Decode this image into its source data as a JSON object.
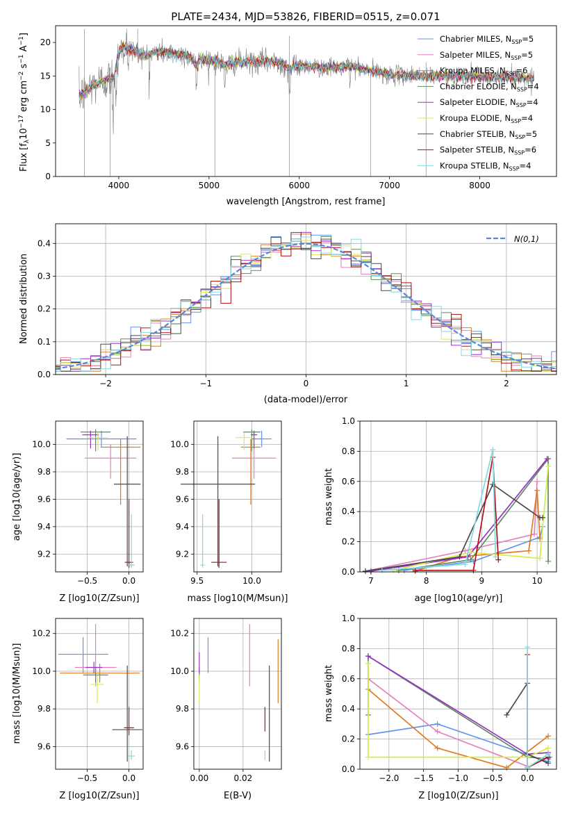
{
  "figure": {
    "title": "PLATE=2434, MJD=53826, FIBERID=0515, z=0.071"
  },
  "models": [
    {
      "name": "Chabrier MILES",
      "nssp": "5",
      "color": "#6495ed"
    },
    {
      "name": "Salpeter MILES",
      "nssp": "5",
      "color": "#e580bf"
    },
    {
      "name": "Kroupa MILES",
      "nssp": "6",
      "color": "#e07b20"
    },
    {
      "name": "Chabrier ELODIE",
      "nssp": "4",
      "color": "#5e8a5e"
    },
    {
      "name": "Salpeter ELODIE",
      "nssp": "4",
      "color": "#9b30c8"
    },
    {
      "name": "Kroupa ELODIE",
      "nssp": "4",
      "color": "#d4ec4e"
    },
    {
      "name": "Chabrier STELIB",
      "nssp": "5",
      "color": "#4a4a4a"
    },
    {
      "name": "Salpeter STELIB",
      "nssp": "6",
      "color": "#b01010"
    },
    {
      "name": "Kroupa STELIB",
      "nssp": "4",
      "color": "#7fdbe0"
    }
  ],
  "chart_data": [
    {
      "id": "spectrum",
      "type": "line",
      "xlabel": "wavelength [Angstrom, rest frame]",
      "ylabel": "Flux [f_λ 10^-17 erg cm^-2 s^-1 A^-1]",
      "ylabel_parts": {
        "a": "Flux [f",
        "b": "λ",
        "c": "10",
        "d": "−17",
        "e": " erg cm",
        "f": "−2",
        "g": " s",
        "h": "−1",
        "i": " A",
        "j": "−1",
        "k": "]"
      },
      "xlim": [
        3300,
        8850
      ],
      "ylim": [
        0,
        22.5
      ],
      "xticks": [
        4000,
        5000,
        6000,
        7000,
        8000
      ],
      "yticks": [
        0,
        5,
        10,
        15,
        20
      ],
      "data_color": "#7a7a7a",
      "anchors_x": [
        3560,
        3620,
        3700,
        3800,
        3900,
        3950,
        4000,
        4050,
        4100,
        4200,
        4300,
        4400,
        4500,
        4600,
        4700,
        4800,
        4862,
        4900,
        5000,
        5100,
        5175,
        5300,
        5400,
        5500,
        5600,
        5700,
        5800,
        5893,
        6000,
        6100,
        6200,
        6300,
        6400,
        6563,
        6700,
        6800,
        7000,
        7200,
        7400,
        7600,
        7800,
        8000,
        8200,
        8400,
        8600
      ],
      "anchors_y": [
        12.0,
        12.5,
        13.5,
        14.2,
        14.5,
        15.0,
        18.5,
        19.5,
        19.2,
        18.6,
        18.0,
        18.5,
        18.6,
        18.3,
        18.2,
        17.8,
        16.5,
        17.6,
        17.4,
        17.2,
        16.5,
        17.1,
        17.0,
        17.0,
        17.2,
        17.1,
        17.0,
        16.0,
        16.6,
        16.4,
        16.3,
        16.2,
        16.2,
        16.5,
        16.0,
        15.8,
        15.2,
        15.1,
        15.0,
        15.0,
        15.1,
        14.9,
        14.8,
        14.8,
        14.7
      ]
    },
    {
      "id": "residuals",
      "type": "histogram",
      "xlabel": "(data-model)/error",
      "ylabel": "Normed distribution",
      "xlim": [
        -2.5,
        2.5
      ],
      "ylim": [
        0,
        0.46
      ],
      "xticks": [
        -2,
        -1,
        0,
        1,
        2
      ],
      "yticks": [
        0,
        0.1,
        0.2,
        0.3,
        0.4
      ],
      "bin_width": 0.1,
      "gaussian": {
        "label": "N(0,1)",
        "mean": 0,
        "sigma": 1,
        "color": "#5a86d8"
      }
    },
    {
      "id": "age-vs-Z",
      "type": "errorbar",
      "xlabel": "Z [log10(Z/Zsun)]",
      "ylabel": "age [log10(age/yr)]",
      "xlim": [
        -0.88,
        0.17
      ],
      "ylim": [
        9.07,
        10.17
      ],
      "xticks": [
        -0.5,
        0.0
      ],
      "yticks": [
        9.2,
        9.4,
        9.6,
        9.8,
        10.0
      ],
      "points": [
        {
          "x": -0.33,
          "y": 10.04,
          "xerr": 0.42,
          "yerr_lo": 0.06,
          "yerr_hi": 0.06
        },
        {
          "x": -0.22,
          "y": 9.9,
          "xerr": 0.31,
          "yerr_lo": 0.15,
          "yerr_hi": 0.1
        },
        {
          "x": -0.1,
          "y": 9.98,
          "xerr": 0.24,
          "yerr_lo": 0.42,
          "yerr_hi": 0.06
        },
        {
          "x": -0.4,
          "y": 10.09,
          "xerr": 0.18,
          "yerr_lo": 0.14,
          "yerr_hi": 0.02
        },
        {
          "x": -0.46,
          "y": 10.07,
          "xerr": 0.1,
          "yerr_lo": 0.1,
          "yerr_hi": 0.03
        },
        {
          "x": -0.37,
          "y": 10.05,
          "xerr": 0.12,
          "yerr_lo": 0.09,
          "yerr_hi": 0.04
        },
        {
          "x": -0.02,
          "y": 9.71,
          "xerr": 0.16,
          "yerr_lo": 0.6,
          "yerr_hi": 0.35
        },
        {
          "x": 0.0,
          "y": 9.14,
          "xerr": 0.05,
          "yerr_lo": 0.04,
          "yerr_hi": 0.46
        },
        {
          "x": 0.03,
          "y": 9.12,
          "xerr": 0.04,
          "yerr_lo": 0.02,
          "yerr_hi": 0.37
        }
      ]
    },
    {
      "id": "age-vs-mass",
      "type": "errorbar",
      "xlabel": "mass [log10(M/Msun)]",
      "ylabel": "",
      "xlim": [
        9.47,
        10.27
      ],
      "ylim": [
        9.07,
        10.17
      ],
      "xticks": [
        9.5,
        10.0
      ],
      "yticks": [
        9.2,
        9.4,
        9.6,
        9.8,
        10.0
      ],
      "points": [
        {
          "x": 10.09,
          "y": 10.04,
          "xerr": 0.09,
          "yerr_lo": 0.06,
          "yerr_hi": 0.06
        },
        {
          "x": 10.02,
          "y": 9.9,
          "xerr": 0.2,
          "yerr_lo": 0.15,
          "yerr_hi": 0.1
        },
        {
          "x": 9.99,
          "y": 9.98,
          "xerr": 0.09,
          "yerr_lo": 0.42,
          "yerr_hi": 0.06
        },
        {
          "x": 10.0,
          "y": 10.09,
          "xerr": 0.08,
          "yerr_lo": 0.14,
          "yerr_hi": 0.02
        },
        {
          "x": 10.02,
          "y": 10.07,
          "xerr": 0.03,
          "yerr_lo": 0.1,
          "yerr_hi": 0.03
        },
        {
          "x": 9.93,
          "y": 10.05,
          "xerr": 0.08,
          "yerr_lo": 0.09,
          "yerr_hi": 0.04
        },
        {
          "x": 9.69,
          "y": 9.71,
          "xerr": 0.34,
          "yerr_lo": 0.6,
          "yerr_hi": 0.35
        },
        {
          "x": 9.7,
          "y": 9.14,
          "xerr": 0.07,
          "yerr_lo": 0.04,
          "yerr_hi": 0.46
        },
        {
          "x": 9.55,
          "y": 9.12,
          "xerr": 0.02,
          "yerr_lo": 0.02,
          "yerr_hi": 0.37
        }
      ]
    },
    {
      "id": "weight-vs-age",
      "type": "line",
      "xlabel": "age [log10(age/yr)]",
      "ylabel": "mass weight",
      "xlim": [
        6.8,
        10.35
      ],
      "ylim": [
        0,
        1.0
      ],
      "xticks": [
        7,
        8,
        9,
        10
      ],
      "yticks": [
        0.0,
        0.2,
        0.4,
        0.6,
        0.8,
        1.0
      ],
      "series": [
        {
          "model": 0,
          "x": [
            7.6,
            8.85,
            10.05,
            10.1
          ],
          "y": [
            0.01,
            0.07,
            0.23,
            0.3
          ]
        },
        {
          "model": 1,
          "x": [
            6.9,
            8.7,
            9.95,
            10.0
          ],
          "y": [
            0.005,
            0.14,
            0.25,
            0.6
          ]
        },
        {
          "model": 2,
          "x": [
            7.8,
            8.6,
            9.85,
            10.0,
            10.05
          ],
          "y": [
            0.005,
            0.1,
            0.14,
            0.54,
            0.22
          ]
        },
        {
          "model": 3,
          "x": [
            7.5,
            8.8,
            10.2,
            10.2
          ],
          "y": [
            0.01,
            0.08,
            0.75,
            0.07
          ]
        },
        {
          "model": 4,
          "x": [
            7.0,
            8.75,
            10.18
          ],
          "y": [
            0.005,
            0.1,
            0.75
          ]
        },
        {
          "model": 5,
          "x": [
            7.4,
            8.8,
            10.05,
            10.2
          ],
          "y": [
            0.01,
            0.13,
            0.09,
            0.7
          ]
        },
        {
          "model": 6,
          "x": [
            6.9,
            8.6,
            9.2,
            10.05,
            10.1
          ],
          "y": [
            0.005,
            0.1,
            0.58,
            0.36,
            0.36
          ]
        },
        {
          "model": 7,
          "x": [
            7.8,
            8.85,
            9.2,
            9.3
          ],
          "y": [
            0.01,
            0.01,
            0.76,
            0.08
          ]
        },
        {
          "model": 8,
          "x": [
            7.2,
            8.7,
            9.2,
            9.25
          ],
          "y": [
            0.01,
            0.05,
            0.81,
            0.1
          ]
        }
      ]
    },
    {
      "id": "mass-vs-Z",
      "type": "errorbar",
      "xlabel": "Z [log10(Z/Zsun)]",
      "ylabel": "mass [log10(M/Msun)]",
      "xlim": [
        -0.88,
        0.17
      ],
      "ylim": [
        9.48,
        10.28
      ],
      "xticks": [
        -0.5,
        0.0
      ],
      "yticks": [
        9.6,
        9.8,
        10.0,
        10.2
      ],
      "points": [
        {
          "x": -0.55,
          "y": 10.09,
          "xerr": 0.3,
          "yerr_lo": 0.1,
          "yerr_hi": 0.09
        },
        {
          "x": -0.4,
          "y": 10.02,
          "xerr": 0.25,
          "yerr_lo": 0.1,
          "yerr_hi": 0.23
        },
        {
          "x": -0.35,
          "y": 9.99,
          "xerr": 0.48,
          "yerr_lo": 0.05,
          "yerr_hi": 0.05
        },
        {
          "x": -0.4,
          "y": 9.98,
          "xerr": 0.15,
          "yerr_lo": 0.04,
          "yerr_hi": 0.04
        },
        {
          "x": -0.42,
          "y": 10.02,
          "xerr": 0.1,
          "yerr_lo": 0.03,
          "yerr_hi": 0.03
        },
        {
          "x": -0.38,
          "y": 9.93,
          "xerr": 0.08,
          "yerr_lo": 0.1,
          "yerr_hi": 0.05
        },
        {
          "x": -0.02,
          "y": 9.69,
          "xerr": 0.18,
          "yerr_lo": 0.17,
          "yerr_hi": 0.34
        },
        {
          "x": 0.0,
          "y": 9.7,
          "xerr": 0.06,
          "yerr_lo": 0.04,
          "yerr_hi": 0.11
        },
        {
          "x": 0.03,
          "y": 9.55,
          "xerr": 0.04,
          "yerr_lo": 0.02,
          "yerr_hi": 0.03
        }
      ]
    },
    {
      "id": "mass-vs-EBV",
      "type": "errorbar",
      "xlabel": "E(B-V)",
      "ylabel": "",
      "xlim": [
        -0.0025,
        0.0375
      ],
      "ylim": [
        9.48,
        10.28
      ],
      "xticks": [
        0.0,
        0.02
      ],
      "yticks": [
        9.6,
        9.8,
        10.0,
        10.2
      ],
      "points": [
        {
          "x": 0.004,
          "y": 10.09,
          "xerr": 0,
          "yerr_lo": 0.1,
          "yerr_hi": 0.09
        },
        {
          "x": 0.023,
          "y": 10.02,
          "xerr": 0,
          "yerr_lo": 0.1,
          "yerr_hi": 0.23
        },
        {
          "x": 0.036,
          "y": 9.99,
          "xerr": 0,
          "yerr_lo": 0.16,
          "yerr_hi": 0.18
        },
        {
          "x": 0.0,
          "y": 9.98,
          "xerr": 0,
          "yerr_lo": 0.04,
          "yerr_hi": 0.04
        },
        {
          "x": 0.0,
          "y": 10.02,
          "xerr": 0,
          "yerr_lo": 0.03,
          "yerr_hi": 0.08
        },
        {
          "x": 0.0,
          "y": 9.93,
          "xerr": 0,
          "yerr_lo": 0.1,
          "yerr_hi": 0.05
        },
        {
          "x": 0.032,
          "y": 9.69,
          "xerr": 0,
          "yerr_lo": 0.17,
          "yerr_hi": 0.34
        },
        {
          "x": 0.03,
          "y": 9.7,
          "xerr": 0,
          "yerr_lo": 0.02,
          "yerr_hi": 0.11
        },
        {
          "x": 0.03,
          "y": 9.55,
          "xerr": 0,
          "yerr_lo": 0.02,
          "yerr_hi": 0.03
        }
      ]
    },
    {
      "id": "weight-vs-Z",
      "type": "line",
      "xlabel": "Z [log10(Z/Zsun)]",
      "ylabel": "mass weight",
      "xlim": [
        -2.42,
        0.42
      ],
      "ylim": [
        0,
        1.0
      ],
      "xticks": [
        -2.0,
        -1.5,
        -1.0,
        -0.5,
        0.0
      ],
      "yticks": [
        0.0,
        0.2,
        0.4,
        0.6,
        0.8,
        1.0
      ],
      "series": [
        {
          "model": 0,
          "x": [
            -2.3,
            -1.3,
            0.3,
            0.32
          ],
          "y": [
            0.23,
            0.3,
            0.05,
            0.08
          ]
        },
        {
          "model": 1,
          "x": [
            -2.3,
            -1.3,
            0.0,
            0.0
          ],
          "y": [
            0.6,
            0.25,
            0.02,
            0.1
          ]
        },
        {
          "model": 2,
          "x": [
            -2.3,
            -1.3,
            -0.3,
            0.3
          ],
          "y": [
            0.53,
            0.14,
            0.01,
            0.22
          ]
        },
        {
          "model": 3,
          "x": [
            -2.3,
            -2.3,
            0.0,
            0.3
          ],
          "y": [
            0.36,
            0.75,
            0.08,
            0.07
          ]
        },
        {
          "model": 4,
          "x": [
            -2.3,
            0.0,
            0.3
          ],
          "y": [
            0.75,
            0.1,
            0.11
          ]
        },
        {
          "model": 5,
          "x": [
            -2.3,
            -2.3,
            0.0,
            0.3
          ],
          "y": [
            0.7,
            0.08,
            0.08,
            0.14
          ]
        },
        {
          "model": 6,
          "x": [
            -0.3,
            0.0,
            0.0,
            0.3
          ],
          "y": [
            0.36,
            0.57,
            0.1,
            0.04
          ]
        },
        {
          "model": 7,
          "x": [
            0.0,
            0.0,
            0.3
          ],
          "y": [
            0.76,
            0.01,
            0.08
          ]
        },
        {
          "model": 8,
          "x": [
            0.0,
            0.0,
            0.3
          ],
          "y": [
            0.81,
            0.01,
            0.1
          ]
        }
      ]
    }
  ]
}
